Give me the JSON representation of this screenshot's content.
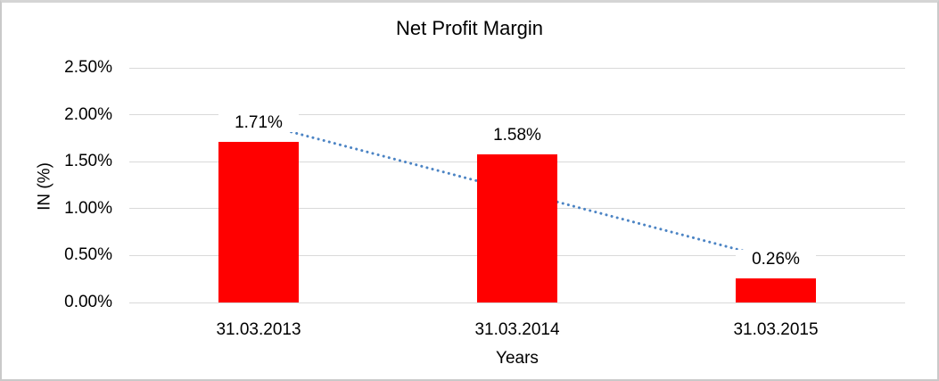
{
  "chart_data": {
    "type": "bar",
    "title": "Net Profit Margin",
    "xlabel": "Years",
    "ylabel": "IN (%)",
    "categories": [
      "31.03.2013",
      "31.03.2014",
      "31.03.2015"
    ],
    "series": [
      {
        "name": "Net Profit Margin",
        "values": [
          1.71,
          1.58,
          0.26
        ]
      }
    ],
    "data_labels": [
      "1.71%",
      "1.58%",
      "0.26%"
    ],
    "ylim": [
      0,
      2.5
    ],
    "ytick_step": 0.5,
    "ytick_labels": [
      "0.00%",
      "0.50%",
      "1.00%",
      "1.50%",
      "2.00%",
      "2.50%"
    ],
    "grid": true,
    "legend": false,
    "trendline": {
      "type": "linear",
      "style": "dotted",
      "start_value": 1.9083,
      "end_value": 0.4583,
      "color": "#4C84C4"
    },
    "colors": {
      "bar": "#FF0000",
      "gridline": "#D9D9D9",
      "frame_border": "#C9C9C9",
      "text": "#000000"
    }
  }
}
